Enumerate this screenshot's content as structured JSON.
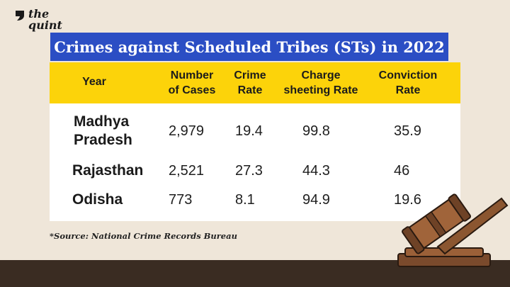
{
  "brand": {
    "line1": "the",
    "line2": "quint"
  },
  "title": "Crimes against Scheduled Tribes (STs) in 2022",
  "table": {
    "headers": [
      {
        "l1": "Year",
        "l2": ""
      },
      {
        "l1": "Number",
        "l2": "of Cases"
      },
      {
        "l1": "Crime",
        "l2": "Rate"
      },
      {
        "l1": "Charge",
        "l2": "sheeting Rate"
      },
      {
        "l1": "Conviction",
        "l2": "Rate"
      }
    ],
    "rows": [
      {
        "name1": "Madhya",
        "name2": "Pradesh",
        "cases": "2,979",
        "crime_rate": "19.4",
        "charge_rate": "99.8",
        "conviction_rate": "35.9"
      },
      {
        "name1": "Rajasthan",
        "name2": "",
        "cases": "2,521",
        "crime_rate": "27.3",
        "charge_rate": "44.3",
        "conviction_rate": "46"
      },
      {
        "name1": "Odisha",
        "name2": "",
        "cases": "773",
        "crime_rate": "8.1",
        "charge_rate": "94.9",
        "conviction_rate": "19.6"
      }
    ]
  },
  "source": "*Source: National Crime Records Bureau",
  "colors": {
    "banner": "#2b4ec4",
    "header": "#fcd30a",
    "background": "#efe6d9",
    "desk": "#3a2c22"
  }
}
